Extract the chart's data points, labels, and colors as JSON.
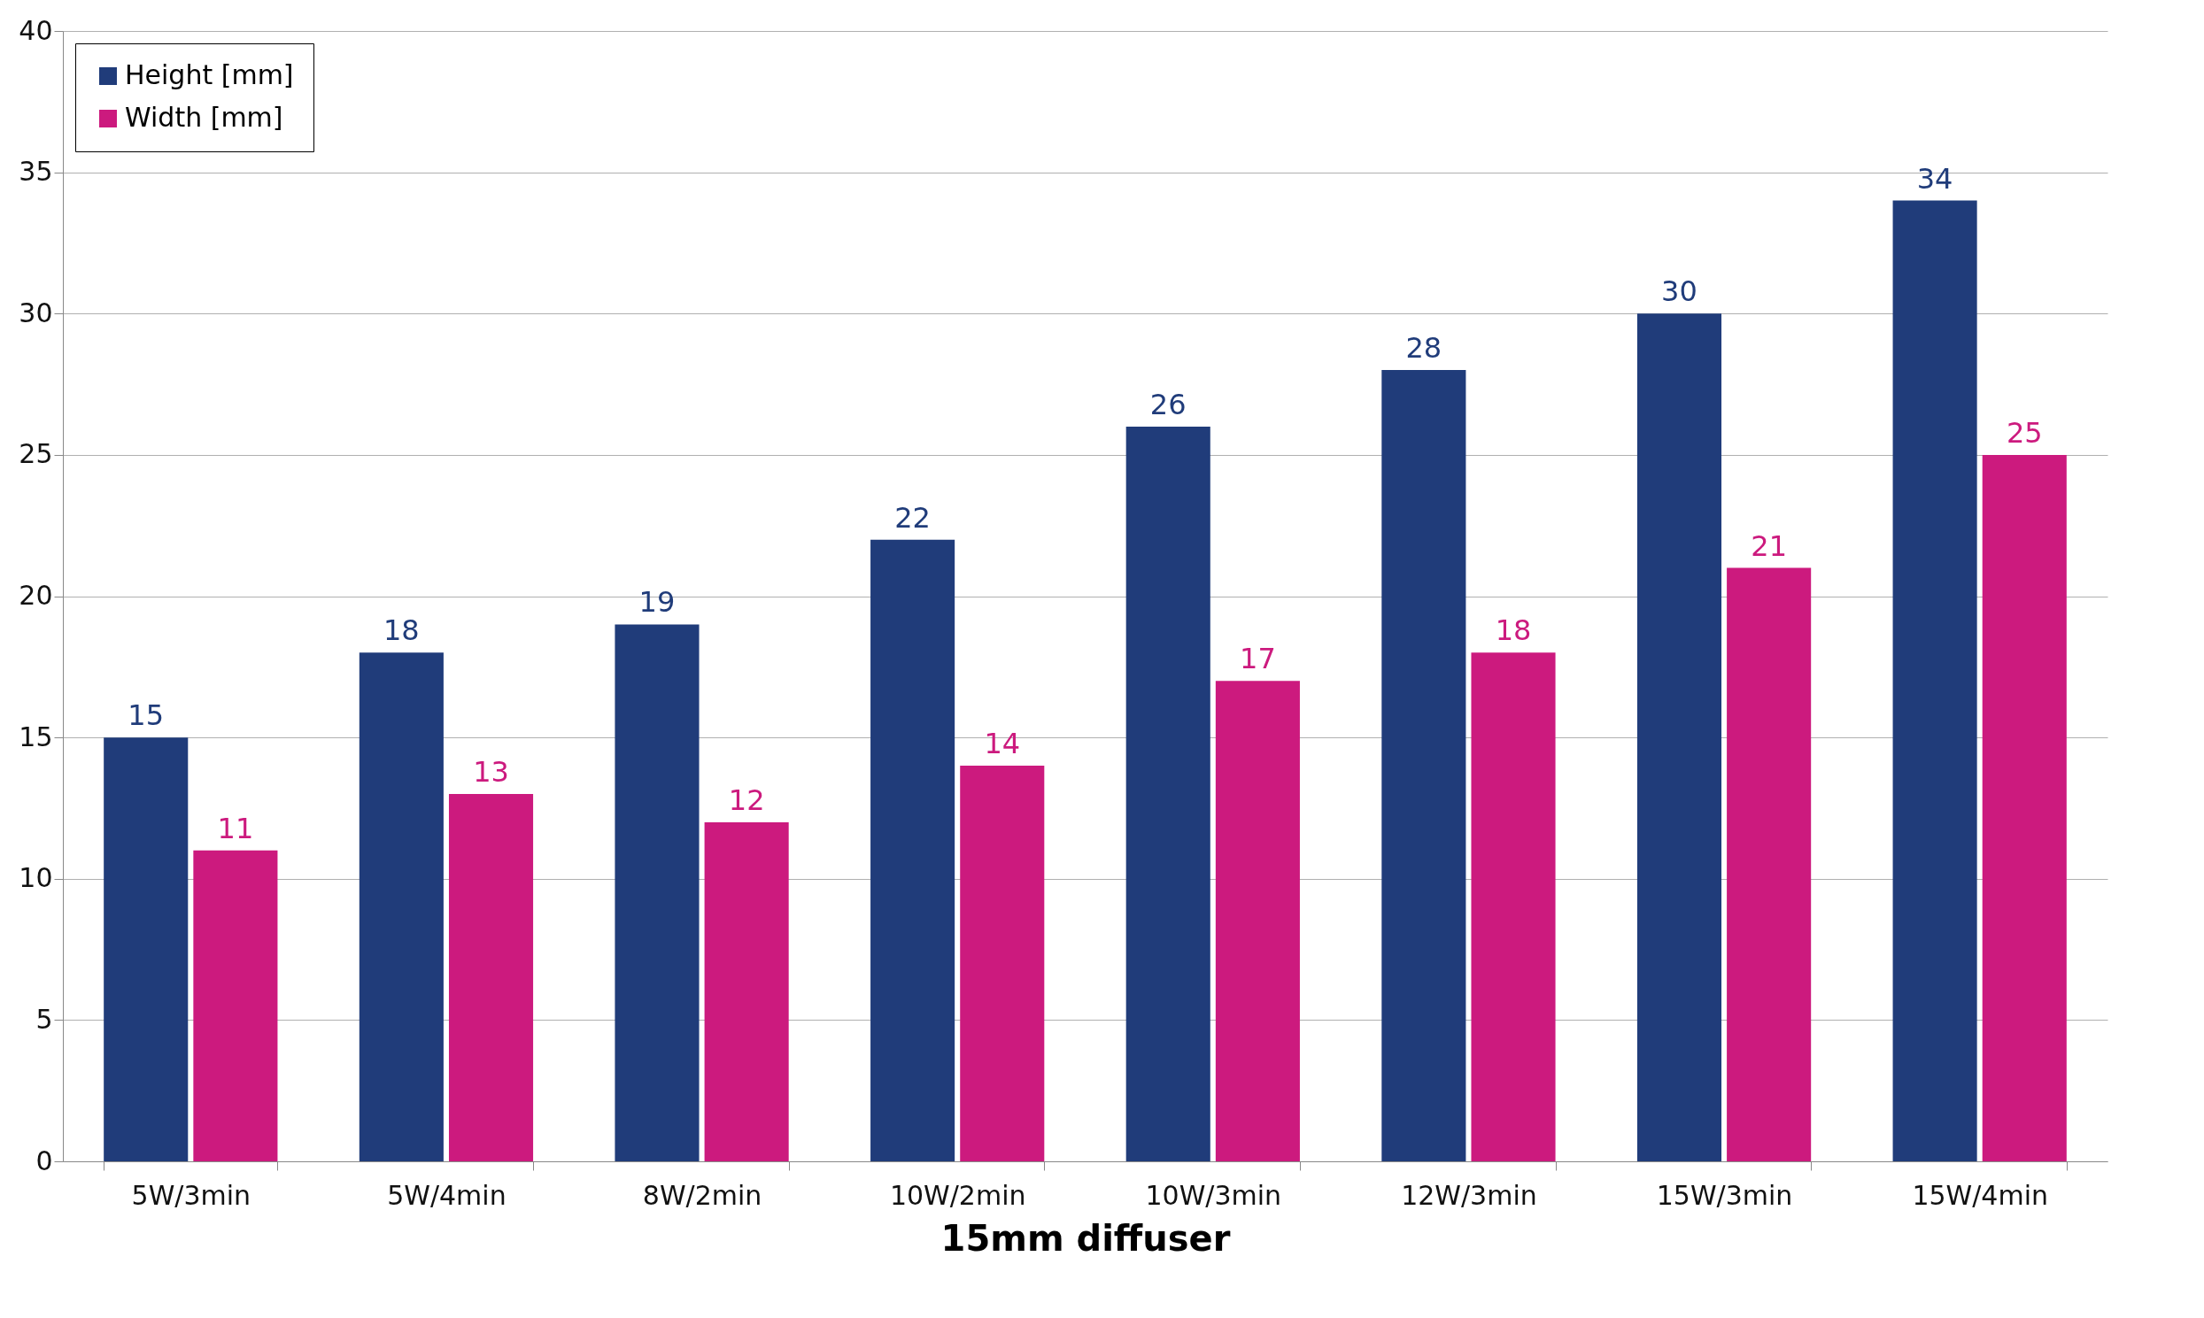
{
  "chart_data": {
    "type": "bar",
    "xlabel": "15mm diffuser",
    "categories": [
      "5W/3min",
      "5W/4min",
      "8W/2min",
      "10W/2min",
      "10W/3min",
      "12W/3min",
      "15W/3min",
      "15W/4min"
    ],
    "series": [
      {
        "name": "Height [mm]",
        "color": "#203c7a",
        "values": [
          15,
          18,
          19,
          22,
          26,
          28,
          30,
          34
        ]
      },
      {
        "name": "Width [mm]",
        "color": "#cc1a7e",
        "values": [
          11,
          13,
          12,
          14,
          17,
          18,
          21,
          25
        ]
      }
    ],
    "ylim": [
      0,
      40
    ],
    "yticks": [
      0,
      5,
      10,
      15,
      20,
      25,
      30,
      35,
      40
    ],
    "grid": "y",
    "legend": "top left",
    "data_labels": true
  }
}
